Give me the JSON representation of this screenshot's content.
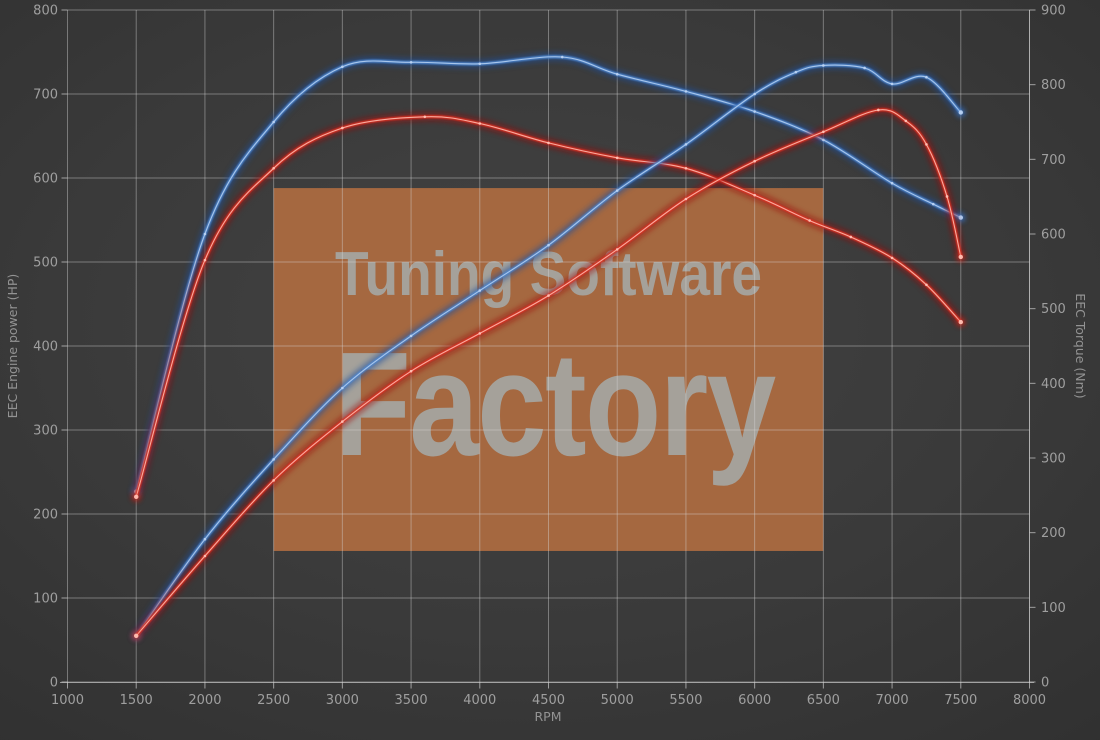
{
  "chart_data": {
    "type": "line",
    "title": "",
    "xlabel": "RPM",
    "grid": true,
    "legend": "none",
    "x_axis": {
      "range": [
        1000,
        8000
      ],
      "ticks": [
        1000,
        1500,
        2000,
        2500,
        3000,
        3500,
        4000,
        4500,
        5000,
        5500,
        6000,
        6500,
        7000,
        7500,
        8000
      ]
    },
    "left_axis": {
      "label": "EEC Engine power (HP)",
      "range": [
        0,
        800
      ],
      "ticks": [
        0,
        100,
        200,
        300,
        400,
        500,
        600,
        700,
        800
      ]
    },
    "right_axis": {
      "label": "EEC Torque (Nm)",
      "range": [
        0,
        900
      ],
      "ticks": [
        0,
        100,
        200,
        300,
        400,
        500,
        600,
        700,
        800,
        900
      ]
    },
    "series": [
      {
        "name": "blue-torque-curve",
        "axis": "right",
        "color": "#4e86cf",
        "glow": "#1c4f9e",
        "marker": "#b9d2f2",
        "points": [
          [
            1500,
            255
          ],
          [
            2000,
            600
          ],
          [
            2500,
            750
          ],
          [
            3000,
            824
          ],
          [
            3500,
            830
          ],
          [
            4000,
            828
          ],
          [
            4600,
            837
          ],
          [
            5000,
            814
          ],
          [
            5500,
            791
          ],
          [
            6000,
            764
          ],
          [
            6500,
            726
          ],
          [
            7000,
            668
          ],
          [
            7300,
            640
          ],
          [
            7500,
            622
          ]
        ]
      },
      {
        "name": "red-torque-curve",
        "axis": "right",
        "color": "#e03020",
        "glow": "#9c1108",
        "marker": "#ffc0b4",
        "points": [
          [
            1500,
            248
          ],
          [
            2000,
            565
          ],
          [
            2500,
            688
          ],
          [
            3000,
            742
          ],
          [
            3600,
            757
          ],
          [
            4000,
            748
          ],
          [
            4500,
            722
          ],
          [
            5000,
            702
          ],
          [
            5500,
            688
          ],
          [
            6000,
            652
          ],
          [
            6400,
            618
          ],
          [
            6700,
            596
          ],
          [
            7000,
            568
          ],
          [
            7250,
            532
          ],
          [
            7500,
            482
          ]
        ]
      },
      {
        "name": "blue-power-curve",
        "axis": "left",
        "color": "#4e86cf",
        "glow": "#1c4f9e",
        "marker": "#b9d2f2",
        "points": [
          [
            1500,
            55
          ],
          [
            2000,
            170
          ],
          [
            2500,
            265
          ],
          [
            3000,
            350
          ],
          [
            3500,
            412
          ],
          [
            4000,
            466
          ],
          [
            4500,
            520
          ],
          [
            5000,
            585
          ],
          [
            5500,
            640
          ],
          [
            6000,
            700
          ],
          [
            6300,
            726
          ],
          [
            6500,
            734
          ],
          [
            6800,
            731
          ],
          [
            7000,
            712
          ],
          [
            7250,
            720
          ],
          [
            7500,
            678
          ]
        ]
      },
      {
        "name": "red-power-curve",
        "axis": "left",
        "color": "#e03020",
        "glow": "#9c1108",
        "marker": "#ffc0b4",
        "points": [
          [
            1500,
            55
          ],
          [
            2000,
            150
          ],
          [
            2500,
            240
          ],
          [
            3000,
            310
          ],
          [
            3500,
            370
          ],
          [
            4000,
            415
          ],
          [
            4500,
            460
          ],
          [
            5000,
            515
          ],
          [
            5500,
            575
          ],
          [
            6000,
            620
          ],
          [
            6500,
            655
          ],
          [
            6900,
            681
          ],
          [
            7100,
            668
          ],
          [
            7250,
            640
          ],
          [
            7400,
            578
          ],
          [
            7500,
            506
          ]
        ]
      }
    ]
  },
  "watermark": {
    "line1": "Tuning Software",
    "line2": "Factory",
    "box_color": "#ad6c41",
    "box_opacity": 0.93,
    "text_color": "#a6a6a2",
    "box_data_coords": {
      "rpm": [
        2500,
        6500
      ],
      "hp": [
        156,
        588
      ]
    }
  }
}
